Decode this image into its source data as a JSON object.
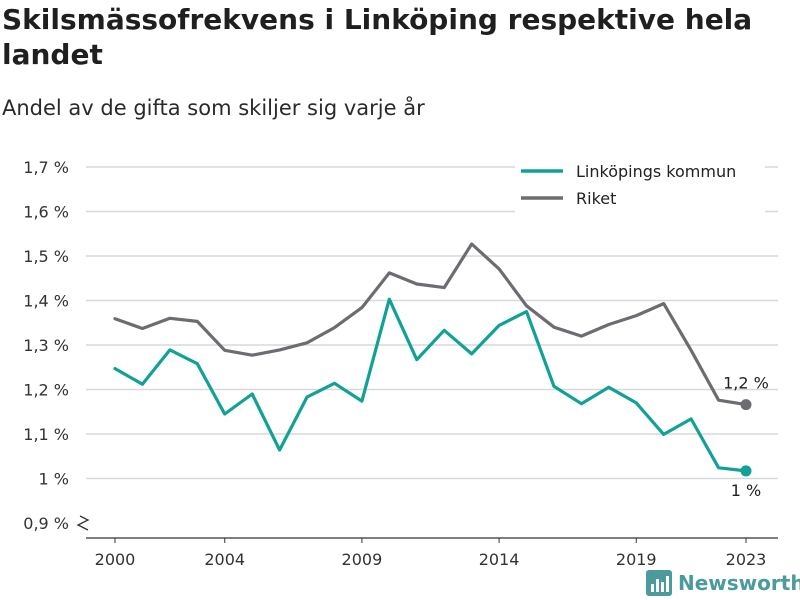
{
  "title": "Skilsmässofrekvens i Linköping respektive hela landet",
  "subtitle": "Andel av de gifta som skiljer sig varje år",
  "brand": {
    "name": "Newsworthy"
  },
  "colors": {
    "linkoping": "#12a196",
    "riket": "#6e6c72",
    "grid": "#d9d9d9",
    "brand": "#4b9a9c"
  },
  "chart_data": {
    "type": "line",
    "title": "Skilsmässofrekvens i Linköping respektive hela landet",
    "subtitle": "Andel av de gifta som skiljer sig varje år",
    "x": [
      2000,
      2001,
      2002,
      2003,
      2004,
      2005,
      2006,
      2007,
      2008,
      2009,
      2010,
      2011,
      2012,
      2013,
      2014,
      2015,
      2016,
      2017,
      2018,
      2019,
      2020,
      2021,
      2022,
      2023
    ],
    "x_ticks": [
      2000,
      2004,
      2009,
      2014,
      2019,
      2023
    ],
    "x_tick_labels": [
      "2000",
      "2004",
      "2009",
      "2014",
      "2019",
      "2023"
    ],
    "y_ticks": [
      0.9,
      1.0,
      1.1,
      1.2,
      1.3,
      1.4,
      1.5,
      1.6,
      1.7
    ],
    "y_tick_labels": [
      "0,9 %",
      "1 %",
      "1,1 %",
      "1,2 %",
      "1,3 %",
      "1,4 %",
      "1,5 %",
      "1,6 %",
      "1,7 %"
    ],
    "ylim": [
      0.9,
      1.7
    ],
    "y_axis_break": true,
    "grid": true,
    "legend": "top-right",
    "series": [
      {
        "name": "Linköpings kommun",
        "color": "#12a196",
        "values": [
          1.247,
          1.212,
          1.289,
          1.258,
          1.145,
          1.19,
          1.064,
          1.183,
          1.214,
          1.174,
          1.403,
          1.267,
          1.333,
          1.28,
          1.344,
          1.375,
          1.207,
          1.168,
          1.205,
          1.17,
          1.099,
          1.134,
          1.024,
          1.017
        ],
        "end_label": "1 %"
      },
      {
        "name": "Riket",
        "color": "#6e6c72",
        "values": [
          1.359,
          1.337,
          1.36,
          1.353,
          1.288,
          1.277,
          1.289,
          1.305,
          1.339,
          1.384,
          1.462,
          1.437,
          1.429,
          1.527,
          1.471,
          1.388,
          1.34,
          1.32,
          1.346,
          1.366,
          1.393,
          1.288,
          1.176,
          1.166
        ],
        "end_label": "1,2 %"
      }
    ]
  }
}
